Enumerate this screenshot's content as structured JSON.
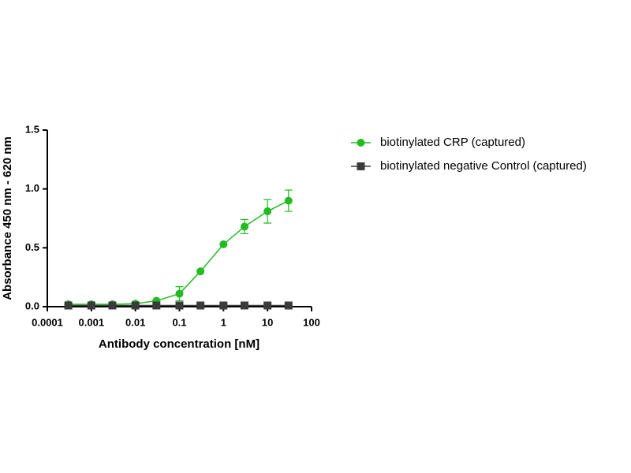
{
  "chart_data": {
    "type": "line",
    "xlabel": "Antibody concentration [nM]",
    "ylabel": "Absorbance 450 nm - 620 nm",
    "xscale": "log",
    "x": [
      0.0003,
      0.001,
      0.003,
      0.01,
      0.03,
      0.1,
      0.3,
      1,
      3,
      10,
      30
    ],
    "series": [
      {
        "name": "biotinylated CRP (captured)",
        "color": "#22bb22",
        "marker": "circle",
        "values": [
          0.02,
          0.02,
          0.02,
          0.025,
          0.05,
          0.11,
          0.3,
          0.53,
          0.68,
          0.81,
          0.9
        ],
        "errors": [
          0,
          0,
          0,
          0,
          0,
          0.06,
          0,
          0,
          0.06,
          0.1,
          0.09
        ]
      },
      {
        "name": "biotinylated negative Control (captured)",
        "color": "#3a3a3a",
        "marker": "square",
        "values": [
          0.01,
          0.01,
          0.01,
          0.01,
          0.01,
          0.01,
          0.01,
          0.01,
          0.01,
          0.01,
          0.01
        ]
      }
    ],
    "xlim": [
      0.0001,
      100
    ],
    "xticks": [
      0.0001,
      0.001,
      0.01,
      0.1,
      1,
      10,
      100
    ],
    "ylim": [
      0,
      1.5
    ],
    "yticks": [
      {
        "value": 0,
        "label": "0.0"
      },
      0.5,
      {
        "value": 1,
        "label": "1.0"
      },
      1.5
    ],
    "legend": "right"
  }
}
